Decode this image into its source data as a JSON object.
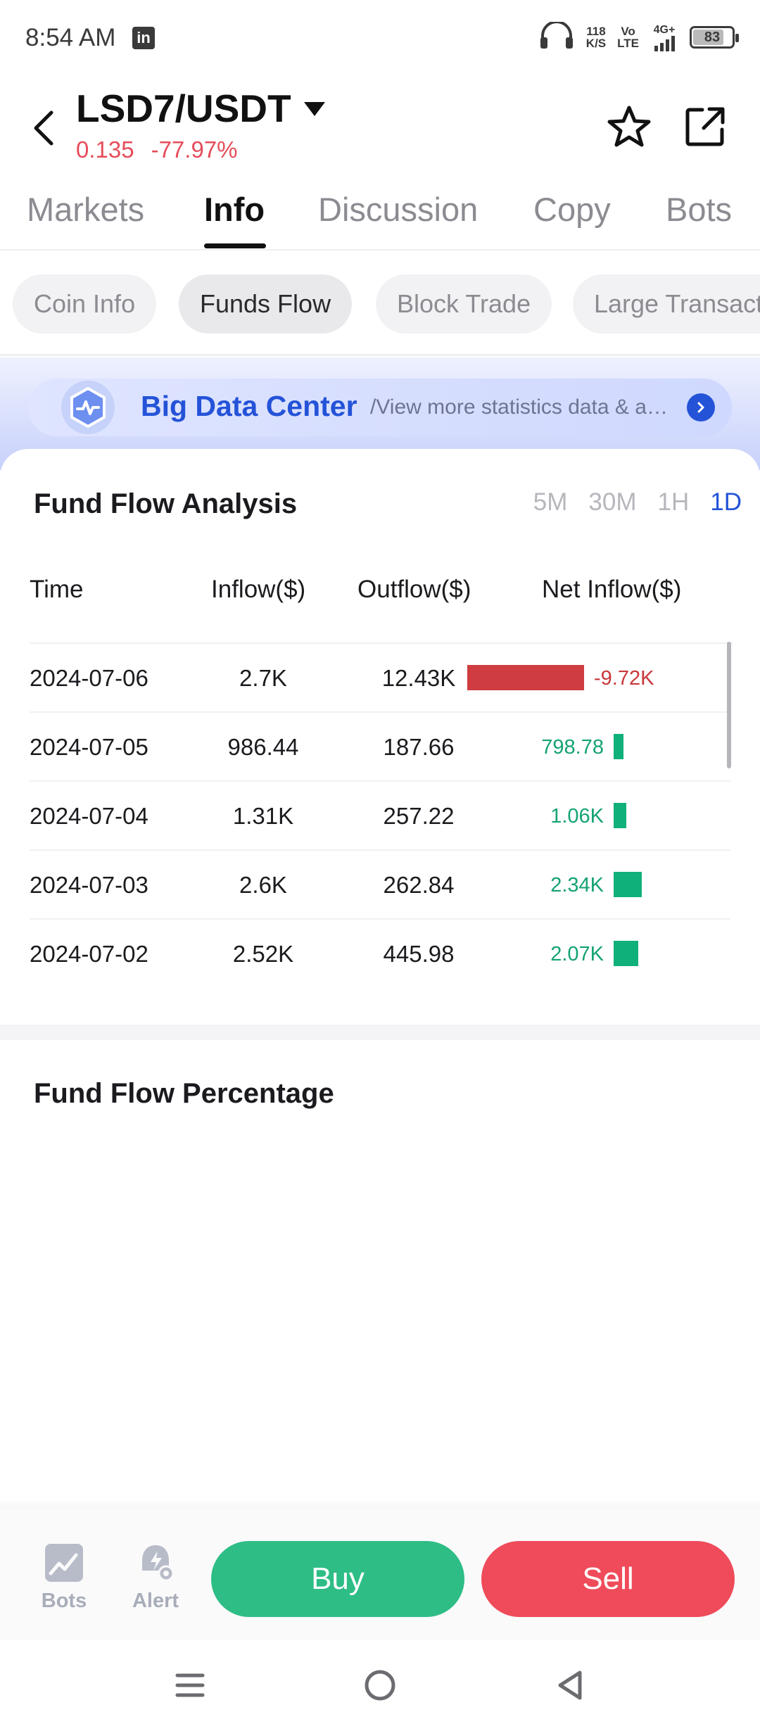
{
  "status_bar": {
    "time": "8:54 AM",
    "app_badge": "in",
    "speed_value": "118",
    "speed_unit": "K/S",
    "volte_top": "Vo",
    "volte_bottom": "LTE",
    "network": "4G+",
    "battery": "83",
    "battery_level": 0.83,
    "icons": [
      "linkedin-icon",
      "headphones-icon",
      "signal-icon",
      "battery-icon"
    ]
  },
  "header": {
    "pair": "LSD7/USDT",
    "price": "0.135",
    "change": "-77.97%",
    "change_color": "#e54d5a",
    "icons": [
      "back-arrow-icon",
      "dropdown-caret-icon",
      "star-icon",
      "share-icon"
    ]
  },
  "tabs": [
    {
      "label": "Markets",
      "active": false
    },
    {
      "label": "Info",
      "active": true
    },
    {
      "label": "Discussion",
      "active": false
    },
    {
      "label": "Copy",
      "active": false
    },
    {
      "label": "Bots",
      "active": false
    }
  ],
  "subtabs": [
    {
      "label": "Coin Info",
      "active": false
    },
    {
      "label": "Funds Flow",
      "active": true
    },
    {
      "label": "Block Trade",
      "active": false
    },
    {
      "label": "Large Transactions",
      "active": false
    }
  ],
  "banner": {
    "title": "Big Data Center",
    "subtitle": "/View more statistics data & analysis",
    "accent": "#2453d8",
    "icons": [
      "pulse-hexagon-icon",
      "chevron-right-icon"
    ]
  },
  "fund_flow": {
    "title": "Fund Flow Analysis",
    "timeframes": [
      {
        "label": "5M",
        "active": false
      },
      {
        "label": "30M",
        "active": false
      },
      {
        "label": "1H",
        "active": false
      },
      {
        "label": "1D",
        "active": true
      }
    ],
    "columns": [
      "Time",
      "Inflow($)",
      "Outflow($)",
      "Net Inflow($)"
    ],
    "rows": [
      {
        "time": "2024-07-06",
        "inflow": "2.7K",
        "outflow": "12.43K",
        "net": "-9.72K",
        "net_value": -9720
      },
      {
        "time": "2024-07-05",
        "inflow": "986.44",
        "outflow": "187.66",
        "net": "798.78",
        "net_value": 798.78
      },
      {
        "time": "2024-07-04",
        "inflow": "1.31K",
        "outflow": "257.22",
        "net": "1.06K",
        "net_value": 1060
      },
      {
        "time": "2024-07-03",
        "inflow": "2.6K",
        "outflow": "262.84",
        "net": "2.34K",
        "net_value": 2340
      },
      {
        "time": "2024-07-02",
        "inflow": "2.52K",
        "outflow": "445.98",
        "net": "2.07K",
        "net_value": 2070
      }
    ],
    "colors": {
      "positive": "#10b07b",
      "negative": "#cf3d41"
    }
  },
  "fund_flow_percentage": {
    "title": "Fund Flow Percentage"
  },
  "bottom_bar": {
    "bots_label": "Bots",
    "alert_label": "Alert",
    "buy_label": "Buy",
    "sell_label": "Sell",
    "buy_color": "#2ebd85",
    "sell_color": "#ef4b5a",
    "icons": [
      "bots-chart-icon",
      "alert-bell-icon"
    ]
  },
  "system_nav": {
    "icons": [
      "menu-icon",
      "home-circle-icon",
      "back-triangle-icon"
    ]
  }
}
